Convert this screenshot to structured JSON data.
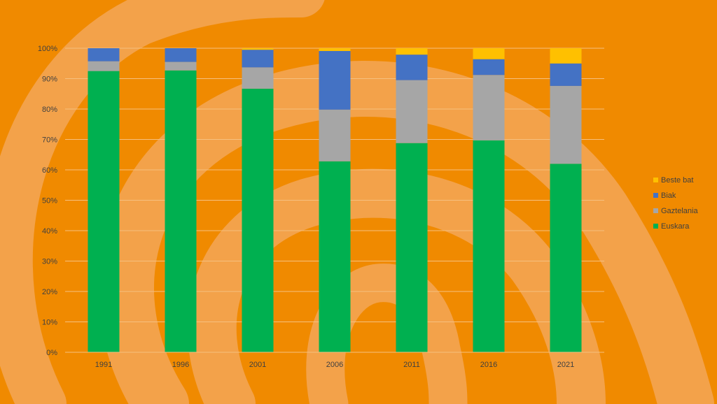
{
  "chart_data": {
    "type": "bar",
    "stacked": true,
    "normalized": true,
    "categories": [
      "1991",
      "1996",
      "2001",
      "2006",
      "2011",
      "2016",
      "2021"
    ],
    "series": [
      {
        "name": "Euskara",
        "color": "#00b050",
        "values": [
          92.5,
          92.7,
          86.7,
          62.8,
          68.8,
          69.7,
          62.0
        ]
      },
      {
        "name": "Gaztelania",
        "color": "#a6a6a6",
        "values": [
          3.2,
          2.8,
          7.0,
          17.0,
          20.7,
          21.5,
          25.6
        ]
      },
      {
        "name": "Biak",
        "color": "#4472c4",
        "values": [
          4.3,
          4.5,
          5.8,
          19.3,
          8.4,
          5.2,
          7.4
        ]
      },
      {
        "name": "Beste bat",
        "color": "#ffc000",
        "values": [
          0.0,
          0.0,
          0.5,
          0.9,
          2.1,
          3.6,
          5.0
        ]
      }
    ],
    "y_ticks": [
      "0%",
      "10%",
      "20%",
      "30%",
      "40%",
      "50%",
      "60%",
      "70%",
      "80%",
      "90%",
      "100%"
    ],
    "ylim": [
      0,
      100
    ],
    "title": "",
    "xlabel": "",
    "ylabel": "",
    "grid": true,
    "legend": {
      "position": "right",
      "order": [
        "Beste bat",
        "Biak",
        "Gaztelania",
        "Euskara"
      ]
    }
  },
  "background": {
    "base_color": "#f08a00",
    "swirl_color": "#f3a24a"
  }
}
